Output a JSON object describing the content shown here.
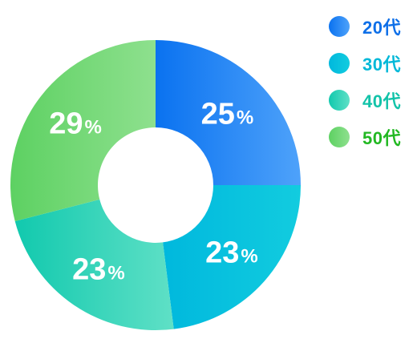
{
  "chart_data": {
    "type": "pie",
    "donut": true,
    "categories": [
      "20代",
      "30代",
      "40代",
      "50代"
    ],
    "values": [
      25,
      23,
      23,
      29
    ],
    "value_suffix": "%",
    "labels": [
      "25",
      "23",
      "23",
      "29"
    ],
    "colors": [
      [
        "#0A72F0",
        "#4EA2FA"
      ],
      [
        "#00B8DD",
        "#12CCDF"
      ],
      [
        "#11C9AE",
        "#5FE0C6"
      ],
      [
        "#5DD162",
        "#8EE08E"
      ]
    ],
    "legend_text_colors": [
      "#0E6FE8",
      "#00B8D8",
      "#12C3A9",
      "#22B822"
    ],
    "legend_placement": "top-right",
    "title": ""
  }
}
